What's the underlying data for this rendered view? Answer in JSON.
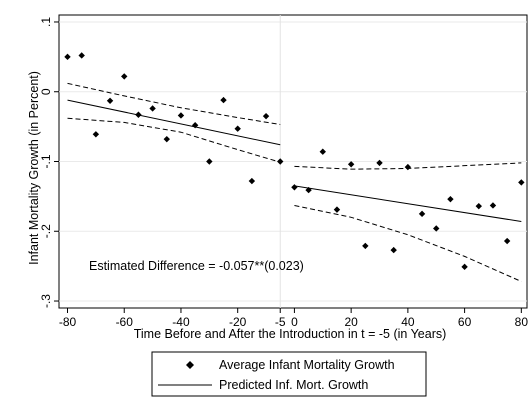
{
  "chart_data": {
    "type": "scatter",
    "xlabel": "Time Before and After the Introduction in t = -5 (in Years)",
    "ylabel": "Infant Mortality Growth (in Percent)",
    "xlim": [
      -83,
      82
    ],
    "ylim": [
      -0.31,
      0.11
    ],
    "xticks": [
      -80,
      -60,
      -40,
      -20,
      -5,
      0,
      20,
      40,
      60,
      80
    ],
    "xtick_labels": [
      "-80",
      "-60",
      "-40",
      "-20",
      "-5",
      "0",
      "20",
      "40",
      "60",
      "80"
    ],
    "yticks": [
      0.1,
      0,
      -0.1,
      -0.2,
      -0.3
    ],
    "ytick_labels": [
      ".1",
      "0",
      "-.1",
      "-.2",
      "-.3"
    ],
    "break_x": -5,
    "grid": true,
    "annotation": "Estimated Difference = -0.057**(0.023)",
    "series": [
      {
        "name": "Average Infant Mortality Growth",
        "style": "diamond-markers",
        "points": [
          [
            -80,
            0.05
          ],
          [
            -75,
            0.052
          ],
          [
            -70,
            -0.061
          ],
          [
            -65,
            -0.013
          ],
          [
            -60,
            0.022
          ],
          [
            -55,
            -0.033
          ],
          [
            -50,
            -0.024
          ],
          [
            -45,
            -0.068
          ],
          [
            -40,
            -0.034
          ],
          [
            -35,
            -0.048
          ],
          [
            -30,
            -0.1
          ],
          [
            -25,
            -0.012
          ],
          [
            -20,
            -0.053
          ],
          [
            -15,
            -0.128
          ],
          [
            -10,
            -0.035
          ],
          [
            -5,
            -0.1
          ],
          [
            0,
            -0.137
          ],
          [
            5,
            -0.141
          ],
          [
            10,
            -0.086
          ],
          [
            15,
            -0.169
          ],
          [
            20,
            -0.104
          ],
          [
            25,
            -0.221
          ],
          [
            30,
            -0.102
          ],
          [
            35,
            -0.227
          ],
          [
            40,
            -0.108
          ],
          [
            45,
            -0.175
          ],
          [
            50,
            -0.196
          ],
          [
            55,
            -0.154
          ],
          [
            60,
            -0.251
          ],
          [
            65,
            -0.164
          ],
          [
            70,
            -0.163
          ],
          [
            75,
            -0.214
          ],
          [
            80,
            -0.13
          ]
        ]
      },
      {
        "name": "Predicted Inf. Mort. Growth",
        "style": "solid-line",
        "segments": [
          {
            "x": [
              -80,
              -5
            ],
            "y": [
              -0.012,
              -0.076
            ]
          },
          {
            "x": [
              0,
              80
            ],
            "y": [
              -0.135,
              -0.186
            ]
          }
        ],
        "ci_upper": [
          {
            "x": [
              -80,
              -60,
              -40,
              -20,
              -5
            ],
            "y": [
              0.012,
              -0.006,
              -0.023,
              -0.037,
              -0.047
            ]
          },
          {
            "x": [
              0,
              20,
              40,
              60,
              80
            ],
            "y": [
              -0.107,
              -0.111,
              -0.11,
              -0.106,
              -0.102
            ]
          }
        ],
        "ci_lower": [
          {
            "x": [
              -80,
              -60,
              -40,
              -20,
              -5
            ],
            "y": [
              -0.038,
              -0.044,
              -0.058,
              -0.083,
              -0.101
            ]
          },
          {
            "x": [
              0,
              20,
              40,
              60,
              80
            ],
            "y": [
              -0.163,
              -0.18,
              -0.205,
              -0.236,
              -0.272
            ]
          }
        ]
      }
    ],
    "legend": {
      "placement": "bottom",
      "entries": [
        "Average Infant Mortality Growth",
        "Predicted Inf. Mort. Growth"
      ]
    }
  }
}
